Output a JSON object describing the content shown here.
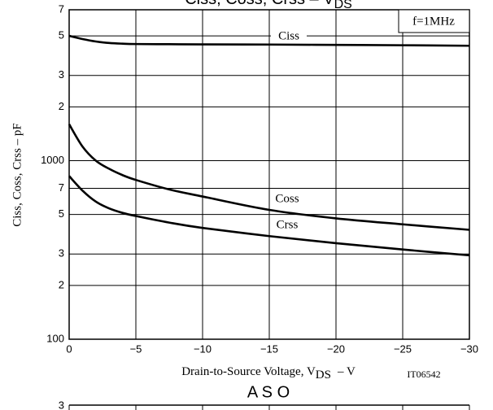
{
  "chart_data": [
    {
      "type": "line",
      "title": {
        "text": "Ciss, Coss, Crss – V",
        "sub": "DS"
      },
      "xlabel": {
        "text": "Drain-to-Source Voltage, V",
        "sub": "DS",
        "suffix": "– V"
      },
      "ylabel": "Ciss, Coss, Crss – pF",
      "figure_id": "IT06542",
      "condition": "f=1MHz",
      "x": [
        0,
        -1,
        -2,
        -3,
        -4,
        -5,
        -7.5,
        -10,
        -15,
        -20,
        -25,
        -30
      ],
      "series": [
        {
          "name": "Ciss",
          "color": "#000000",
          "values": [
            5000,
            4800,
            4650,
            4560,
            4520,
            4500,
            4490,
            4480,
            4470,
            4450,
            4430,
            4400
          ]
        },
        {
          "name": "Coss",
          "color": "#000000",
          "values": [
            1600,
            1200,
            1000,
            900,
            830,
            780,
            690,
            630,
            530,
            475,
            440,
            410
          ]
        },
        {
          "name": "Crss",
          "color": "#000000",
          "values": [
            820,
            680,
            590,
            540,
            510,
            490,
            450,
            420,
            378,
            345,
            318,
            295
          ]
        }
      ],
      "xlim": [
        0,
        -30
      ],
      "xticks": [
        0,
        {
          "value": -5,
          "label": "−5"
        },
        {
          "value": -10,
          "label": "−10"
        },
        {
          "value": -15,
          "label": "−15"
        },
        {
          "value": -20,
          "label": "−20"
        },
        {
          "value": -25,
          "label": "−25"
        },
        {
          "value": -30,
          "label": "−30"
        }
      ],
      "ylim": [
        100,
        7000
      ],
      "yticks": [
        100,
        {
          "value": 200,
          "label": "2"
        },
        {
          "value": 300,
          "label": "3"
        },
        {
          "value": 500,
          "label": "5"
        },
        {
          "value": 700,
          "label": "7"
        },
        1000,
        {
          "value": 2000,
          "label": "2"
        },
        {
          "value": 3000,
          "label": "3"
        },
        {
          "value": 5000,
          "label": "5"
        },
        {
          "value": 7000,
          "label": "7"
        }
      ],
      "log_y": true,
      "grid": true
    },
    {
      "type": "line",
      "title": "A S O",
      "yticks": [
        3
      ]
    }
  ]
}
